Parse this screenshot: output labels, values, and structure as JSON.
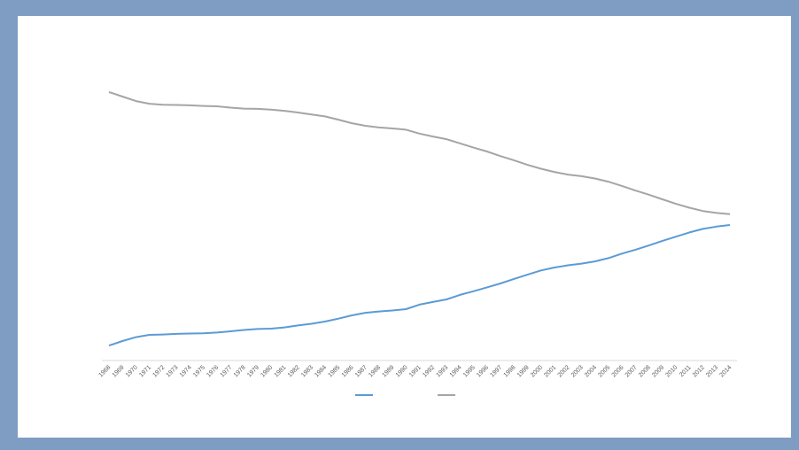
{
  "chart_data": {
    "type": "line",
    "categories": [
      "1968",
      "1969",
      "1970",
      "1971",
      "1972",
      "1973",
      "1974",
      "1975",
      "1976",
      "1977",
      "1978",
      "1979",
      "1980",
      "1981",
      "1982",
      "1983",
      "1984",
      "1985",
      "1986",
      "1987",
      "1988",
      "1989",
      "1990",
      "1991",
      "1992",
      "1993",
      "1994",
      "1995",
      "1996",
      "1997",
      "1998",
      "1999",
      "2000",
      "2001",
      "2002",
      "2003",
      "2004",
      "2005",
      "2006",
      "2007",
      "2008",
      "2009",
      "2010",
      "2011",
      "2012",
      "2013",
      "2014"
    ],
    "series": [
      {
        "color": "#5b9bd5",
        "values": [
          4.6,
          6.0,
          7.2,
          7.9,
          8.0,
          8.2,
          8.3,
          8.4,
          8.6,
          9.0,
          9.4,
          9.7,
          9.8,
          10.2,
          10.8,
          11.3,
          12.0,
          12.9,
          13.9,
          14.7,
          15.1,
          15.4,
          15.8,
          17.2,
          18.0,
          18.8,
          20.2,
          21.3,
          22.5,
          23.7,
          25.1,
          26.4,
          27.7,
          28.6,
          29.3,
          29.8,
          30.5,
          31.5,
          32.9,
          34.1,
          35.4,
          36.8,
          38.1,
          39.4,
          40.5,
          41.2,
          41.7
        ]
      },
      {
        "color": "#a5a5a5",
        "values": [
          82.6,
          81.2,
          79.8,
          79.0,
          78.7,
          78.6,
          78.5,
          78.3,
          78.2,
          77.8,
          77.5,
          77.4,
          77.2,
          76.8,
          76.3,
          75.7,
          75.1,
          74.1,
          73.0,
          72.2,
          71.7,
          71.4,
          71.0,
          69.8,
          68.9,
          68.1,
          66.8,
          65.5,
          64.3,
          62.9,
          61.6,
          60.2,
          59.0,
          58.0,
          57.2,
          56.7,
          56.0,
          55.0,
          53.7,
          52.3,
          51.0,
          49.6,
          48.2,
          47.0,
          46.0,
          45.4,
          45.0
        ]
      }
    ],
    "ylim": [
      0,
      100
    ],
    "legend": "bottom"
  }
}
